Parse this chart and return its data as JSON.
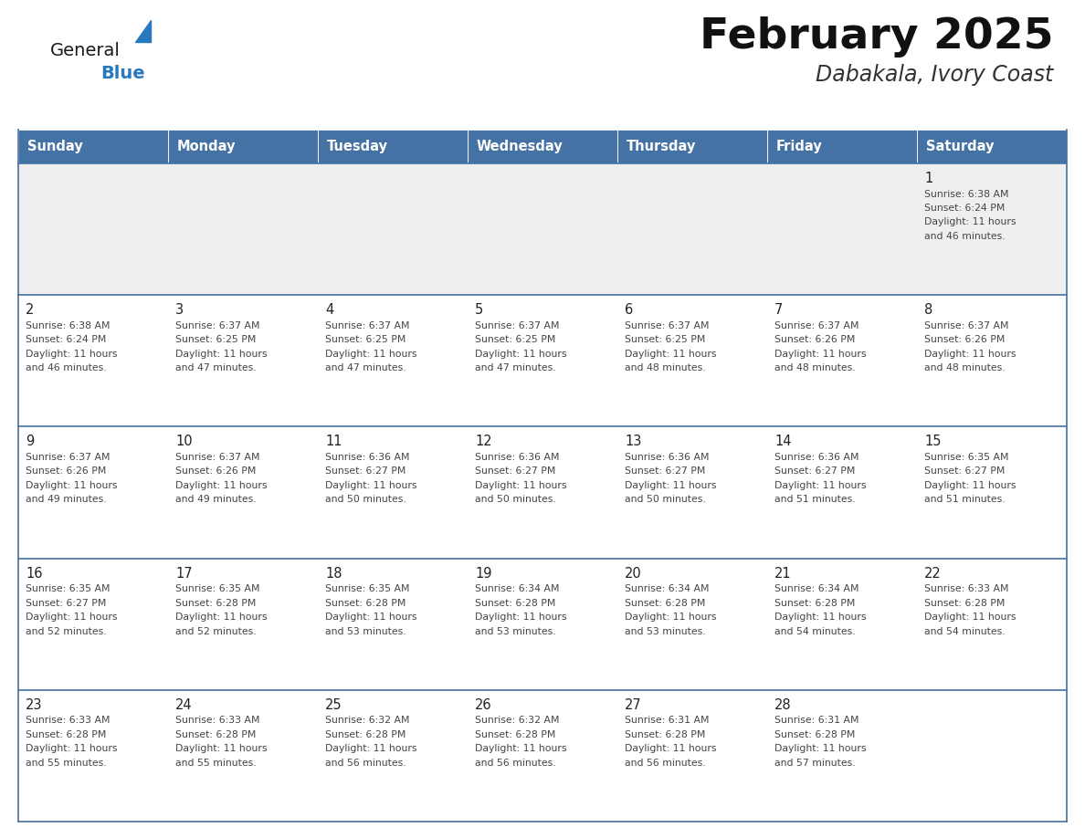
{
  "title": "February 2025",
  "subtitle": "Dabakala, Ivory Coast",
  "days_of_week": [
    "Sunday",
    "Monday",
    "Tuesday",
    "Wednesday",
    "Thursday",
    "Friday",
    "Saturday"
  ],
  "header_bg": "#4472A4",
  "header_text": "#FFFFFF",
  "cell_bg_week1": "#EFEFEF",
  "cell_bg_normal": "#FFFFFF",
  "cell_border_color": "#4472A4",
  "row_divider_color": "#4472A4",
  "day_num_color": "#222222",
  "info_text_color": "#444444",
  "title_color": "#111111",
  "subtitle_color": "#333333",
  "logo_general_color": "#1a1a1a",
  "logo_blue_color": "#2878BE",
  "calendar_data": [
    [
      null,
      null,
      null,
      null,
      null,
      null,
      {
        "day": 1,
        "sunrise": "6:38 AM",
        "sunset": "6:24 PM",
        "daylight": "11 hours\nand 46 minutes."
      }
    ],
    [
      {
        "day": 2,
        "sunrise": "6:38 AM",
        "sunset": "6:24 PM",
        "daylight": "11 hours\nand 46 minutes."
      },
      {
        "day": 3,
        "sunrise": "6:37 AM",
        "sunset": "6:25 PM",
        "daylight": "11 hours\nand 47 minutes."
      },
      {
        "day": 4,
        "sunrise": "6:37 AM",
        "sunset": "6:25 PM",
        "daylight": "11 hours\nand 47 minutes."
      },
      {
        "day": 5,
        "sunrise": "6:37 AM",
        "sunset": "6:25 PM",
        "daylight": "11 hours\nand 47 minutes."
      },
      {
        "day": 6,
        "sunrise": "6:37 AM",
        "sunset": "6:25 PM",
        "daylight": "11 hours\nand 48 minutes."
      },
      {
        "day": 7,
        "sunrise": "6:37 AM",
        "sunset": "6:26 PM",
        "daylight": "11 hours\nand 48 minutes."
      },
      {
        "day": 8,
        "sunrise": "6:37 AM",
        "sunset": "6:26 PM",
        "daylight": "11 hours\nand 48 minutes."
      }
    ],
    [
      {
        "day": 9,
        "sunrise": "6:37 AM",
        "sunset": "6:26 PM",
        "daylight": "11 hours\nand 49 minutes."
      },
      {
        "day": 10,
        "sunrise": "6:37 AM",
        "sunset": "6:26 PM",
        "daylight": "11 hours\nand 49 minutes."
      },
      {
        "day": 11,
        "sunrise": "6:36 AM",
        "sunset": "6:27 PM",
        "daylight": "11 hours\nand 50 minutes."
      },
      {
        "day": 12,
        "sunrise": "6:36 AM",
        "sunset": "6:27 PM",
        "daylight": "11 hours\nand 50 minutes."
      },
      {
        "day": 13,
        "sunrise": "6:36 AM",
        "sunset": "6:27 PM",
        "daylight": "11 hours\nand 50 minutes."
      },
      {
        "day": 14,
        "sunrise": "6:36 AM",
        "sunset": "6:27 PM",
        "daylight": "11 hours\nand 51 minutes."
      },
      {
        "day": 15,
        "sunrise": "6:35 AM",
        "sunset": "6:27 PM",
        "daylight": "11 hours\nand 51 minutes."
      }
    ],
    [
      {
        "day": 16,
        "sunrise": "6:35 AM",
        "sunset": "6:27 PM",
        "daylight": "11 hours\nand 52 minutes."
      },
      {
        "day": 17,
        "sunrise": "6:35 AM",
        "sunset": "6:28 PM",
        "daylight": "11 hours\nand 52 minutes."
      },
      {
        "day": 18,
        "sunrise": "6:35 AM",
        "sunset": "6:28 PM",
        "daylight": "11 hours\nand 53 minutes."
      },
      {
        "day": 19,
        "sunrise": "6:34 AM",
        "sunset": "6:28 PM",
        "daylight": "11 hours\nand 53 minutes."
      },
      {
        "day": 20,
        "sunrise": "6:34 AM",
        "sunset": "6:28 PM",
        "daylight": "11 hours\nand 53 minutes."
      },
      {
        "day": 21,
        "sunrise": "6:34 AM",
        "sunset": "6:28 PM",
        "daylight": "11 hours\nand 54 minutes."
      },
      {
        "day": 22,
        "sunrise": "6:33 AM",
        "sunset": "6:28 PM",
        "daylight": "11 hours\nand 54 minutes."
      }
    ],
    [
      {
        "day": 23,
        "sunrise": "6:33 AM",
        "sunset": "6:28 PM",
        "daylight": "11 hours\nand 55 minutes."
      },
      {
        "day": 24,
        "sunrise": "6:33 AM",
        "sunset": "6:28 PM",
        "daylight": "11 hours\nand 55 minutes."
      },
      {
        "day": 25,
        "sunrise": "6:32 AM",
        "sunset": "6:28 PM",
        "daylight": "11 hours\nand 56 minutes."
      },
      {
        "day": 26,
        "sunrise": "6:32 AM",
        "sunset": "6:28 PM",
        "daylight": "11 hours\nand 56 minutes."
      },
      {
        "day": 27,
        "sunrise": "6:31 AM",
        "sunset": "6:28 PM",
        "daylight": "11 hours\nand 56 minutes."
      },
      {
        "day": 28,
        "sunrise": "6:31 AM",
        "sunset": "6:28 PM",
        "daylight": "11 hours\nand 57 minutes."
      },
      null
    ]
  ]
}
